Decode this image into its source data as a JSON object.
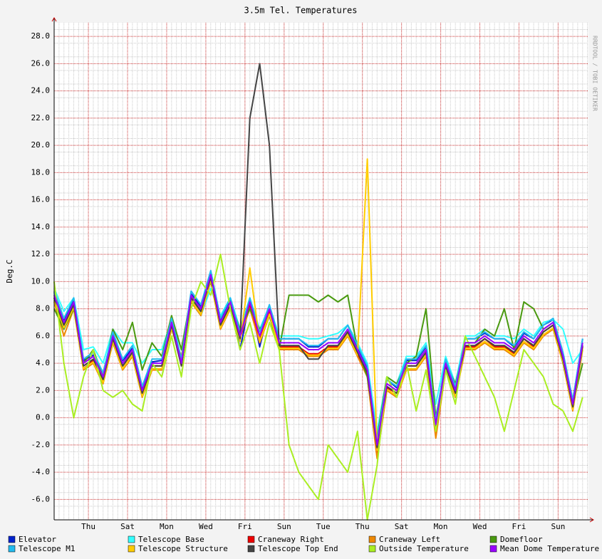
{
  "chart_data": {
    "type": "line",
    "title": "3.5m Tel. Temperatures",
    "y_label": "Deg.C",
    "watermark": "RRDTOOL / TOBI OETIKER",
    "x": [
      0,
      0.5,
      1,
      1.5,
      2,
      2.5,
      3,
      3.5,
      4,
      4.5,
      5,
      5.5,
      6,
      6.5,
      7,
      7.5,
      8,
      8.5,
      9,
      9.5,
      10,
      10.5,
      11,
      11.5,
      12,
      12.5,
      13,
      13.5,
      14,
      14.5,
      15,
      15.5,
      16,
      16.5,
      17,
      17.5,
      18,
      18.5,
      19,
      19.5,
      20,
      20.5,
      21,
      21.5,
      22,
      22.5,
      23,
      23.5,
      24,
      24.5,
      25,
      25.5,
      26,
      26.5,
      27
    ],
    "xlim": [
      0,
      27.3
    ],
    "xticks": [
      {
        "value": 1.75,
        "label": "Thu"
      },
      {
        "value": 3.75,
        "label": "Sat"
      },
      {
        "value": 5.75,
        "label": "Mon"
      },
      {
        "value": 7.75,
        "label": "Wed"
      },
      {
        "value": 9.75,
        "label": "Fri"
      },
      {
        "value": 11.75,
        "label": "Sun"
      },
      {
        "value": 13.75,
        "label": "Tue"
      },
      {
        "value": 15.75,
        "label": "Thu"
      },
      {
        "value": 17.75,
        "label": "Sat"
      },
      {
        "value": 19.75,
        "label": "Mon"
      },
      {
        "value": 21.75,
        "label": "Wed"
      },
      {
        "value": 23.75,
        "label": "Fri"
      },
      {
        "value": 25.75,
        "label": "Sun"
      }
    ],
    "ylim": [
      -7.5,
      29
    ],
    "yticks": [
      {
        "value": -6,
        "label": "-6.0"
      },
      {
        "value": -4,
        "label": "-4.0"
      },
      {
        "value": -2,
        "label": "-2.0"
      },
      {
        "value": 0,
        "label": "0.0"
      },
      {
        "value": 2,
        "label": "2.0"
      },
      {
        "value": 4,
        "label": "4.0"
      },
      {
        "value": 6,
        "label": "6.0"
      },
      {
        "value": 8,
        "label": "8.0"
      },
      {
        "value": 10,
        "label": "10.0"
      },
      {
        "value": 12,
        "label": "12.0"
      },
      {
        "value": 14,
        "label": "14.0"
      },
      {
        "value": 16,
        "label": "16.0"
      },
      {
        "value": 18,
        "label": "18.0"
      },
      {
        "value": 20,
        "label": "20.0"
      },
      {
        "value": 22,
        "label": "22.0"
      },
      {
        "value": 24,
        "label": "24.0"
      },
      {
        "value": 26,
        "label": "26.0"
      },
      {
        "value": 28,
        "label": "28.0"
      }
    ],
    "grid": true,
    "series": [
      {
        "name": "Elevator",
        "color": "#0022cc",
        "values": [
          9.2,
          7.2,
          8.6,
          4.2,
          4.6,
          2.8,
          6.1,
          4.2,
          5.1,
          2.2,
          4.1,
          4.2,
          7.1,
          4.2,
          9.1,
          8.2,
          10.6,
          7.1,
          8.6,
          5,
          8.6,
          5.2,
          8.1,
          5.8,
          5.8,
          5.8,
          5.2,
          5.2,
          5.8,
          5.8,
          6.8,
          5.2,
          3.6,
          -2.2,
          2.8,
          2.2,
          4.2,
          4.2,
          5.2,
          -0.3,
          4.2,
          2.2,
          5.8,
          5.8,
          6.2,
          5.8,
          5.8,
          5.2,
          6.2,
          5.8,
          6.8,
          7.2,
          4.6,
          1.2,
          5.8
        ]
      },
      {
        "name": "Telescope Base",
        "color": "#33ffff",
        "values": [
          9.5,
          7.8,
          8.8,
          5,
          5.2,
          4,
          6.5,
          5.5,
          5.5,
          4,
          5,
          5,
          7.2,
          5,
          8.5,
          7.5,
          9.5,
          7.5,
          8.8,
          6.5,
          8.8,
          6.5,
          8.2,
          6,
          6,
          6,
          5.8,
          5.8,
          6,
          6.2,
          6.8,
          5.5,
          4,
          -1,
          3,
          2.5,
          4.5,
          4.5,
          5.5,
          1,
          4.5,
          2.5,
          6,
          6,
          6.5,
          6,
          6,
          5.8,
          6.5,
          6,
          7,
          7.2,
          6.5,
          4,
          5
        ]
      },
      {
        "name": "Craneway Right",
        "color": "#ee0000",
        "values": [
          8.8,
          6.5,
          8.3,
          3.6,
          4.2,
          2.6,
          5.8,
          3.8,
          4.8,
          1.8,
          3.8,
          3.8,
          6.8,
          3.8,
          8.8,
          7.8,
          10.3,
          6.8,
          8.3,
          5.8,
          8.3,
          5.8,
          7.8,
          5.2,
          5.2,
          5.2,
          4.7,
          4.7,
          5.2,
          5.2,
          6.3,
          4.7,
          3.2,
          -2.6,
          2.2,
          1.8,
          3.8,
          3.8,
          4.8,
          -0.8,
          3.8,
          1.8,
          5.2,
          5.2,
          5.8,
          5.2,
          5.2,
          4.7,
          5.8,
          5.2,
          6.3,
          6.8,
          4.2,
          0.8,
          5.2
        ]
      },
      {
        "name": "Craneway Left",
        "color": "#ee8800",
        "values": [
          8.5,
          6,
          8,
          3.5,
          4,
          2.5,
          5.5,
          3.5,
          4.5,
          1.5,
          3.5,
          3.5,
          6.5,
          4.5,
          8.5,
          7.5,
          10,
          6.5,
          8,
          6,
          8,
          5.5,
          7.5,
          5,
          5,
          5,
          4.5,
          4.5,
          5,
          5,
          6,
          4.5,
          3,
          -3,
          2,
          1.5,
          3.5,
          3.5,
          4.5,
          -1.5,
          3.5,
          1.5,
          5,
          5,
          5.5,
          5,
          5,
          4.5,
          5.5,
          5,
          6,
          6.5,
          4,
          0.5,
          5
        ]
      },
      {
        "name": "Domefloor",
        "color": "#4a9a10",
        "values": [
          8,
          6.5,
          8,
          4,
          5,
          3,
          6.5,
          5,
          7,
          3.5,
          5.5,
          4.5,
          7.5,
          5,
          9,
          8,
          10,
          7,
          8.5,
          6.5,
          8,
          6.5,
          7.5,
          5,
          9,
          9,
          9,
          8.5,
          9,
          8.5,
          9,
          5,
          3,
          -1.5,
          3,
          2.5,
          4,
          4.5,
          8,
          0,
          4,
          2.5,
          5.5,
          5.5,
          6.5,
          6,
          8,
          5,
          8.5,
          8,
          6.5,
          7,
          4,
          1,
          4
        ]
      },
      {
        "name": "Telescope M1",
        "color": "#22bbee",
        "values": [
          9.3,
          7.3,
          8.8,
          4.3,
          4.8,
          3.3,
          6.3,
          4.3,
          5.3,
          2.3,
          4.3,
          4.3,
          7.3,
          4.3,
          9.3,
          8.3,
          10.8,
          7.3,
          8.8,
          6.3,
          8.8,
          6.3,
          8.3,
          5.8,
          5.8,
          5.8,
          5.3,
          5.3,
          5.8,
          5.8,
          6.8,
          5.3,
          3.8,
          -1.7,
          2.8,
          2.3,
          4.3,
          4.3,
          5.3,
          -0.2,
          4.3,
          2.3,
          5.8,
          5.8,
          6.3,
          5.8,
          5.8,
          5.3,
          6.3,
          5.8,
          6.8,
          7.3,
          4.8,
          1.3,
          5.8
        ]
      },
      {
        "name": "Telescope Structure",
        "color": "#ffcc00",
        "values": [
          8.6,
          6.6,
          8.1,
          3.6,
          4.1,
          2.6,
          5.6,
          3.6,
          4.6,
          1.6,
          3.6,
          3.6,
          6.6,
          4,
          8.6,
          7.6,
          10.1,
          6.6,
          8.1,
          5.6,
          11,
          5.6,
          7.6,
          5.1,
          5.1,
          5.1,
          4.6,
          4.6,
          5.1,
          5.1,
          6.1,
          4.6,
          19,
          -2.4,
          2.1,
          1.6,
          3.6,
          3.6,
          4.6,
          -0.9,
          3.6,
          1.6,
          5.1,
          5.1,
          5.6,
          5.1,
          5.1,
          4.6,
          5.6,
          5.1,
          6.1,
          6.6,
          4.1,
          0.6,
          5.1
        ]
      },
      {
        "name": "Telescope Top End",
        "color": "#444444",
        "values": [
          8.8,
          6.8,
          8.3,
          3.8,
          4.3,
          2.8,
          5.8,
          3.8,
          4.8,
          1.8,
          3.8,
          3.8,
          6.8,
          3.8,
          8.8,
          7.8,
          10.3,
          6.8,
          8.3,
          5.8,
          22,
          26,
          20,
          5.3,
          5.3,
          5.3,
          4.3,
          4.3,
          5.3,
          5.3,
          6.3,
          4.8,
          3.3,
          -2.2,
          2.3,
          1.8,
          3.8,
          3.8,
          4.8,
          -0.7,
          3.8,
          1.8,
          5.3,
          5.3,
          5.8,
          5.3,
          5.3,
          4.8,
          5.8,
          5.3,
          6.3,
          6.8,
          4.3,
          0.8,
          5.3
        ]
      },
      {
        "name": "Outside Temperature",
        "color": "#aaee22",
        "values": [
          10,
          4,
          0,
          3,
          5,
          2,
          1.5,
          2,
          1,
          0.5,
          4,
          3,
          6,
          3,
          8,
          10,
          9,
          12,
          8,
          5,
          7,
          4,
          7,
          5,
          -2,
          -4,
          -5,
          -6,
          -2,
          -3,
          -4,
          -1,
          -7.5,
          -3.5,
          3,
          1.5,
          4,
          0.5,
          3.5,
          -1,
          3.5,
          1,
          6,
          4.5,
          3,
          1.5,
          -1,
          2,
          5,
          4,
          3,
          1,
          0.5,
          -1,
          1.5
        ]
      },
      {
        "name": "Mean Dome Temperature",
        "color": "#9900ff",
        "values": [
          9,
          7,
          8.5,
          4,
          4.5,
          3,
          6,
          4,
          5,
          2,
          4,
          4,
          7,
          4,
          9,
          8,
          10.5,
          7,
          8.5,
          6,
          8.5,
          6,
          8,
          5.5,
          5.5,
          5.5,
          5,
          5,
          5.5,
          5.5,
          6.5,
          5,
          3.5,
          -2,
          2.5,
          2,
          4,
          4,
          5,
          -0.5,
          4,
          2,
          5.5,
          5.5,
          6,
          5.5,
          5.5,
          5,
          6,
          5.5,
          6.5,
          7,
          4.5,
          1,
          5.5
        ]
      }
    ]
  }
}
